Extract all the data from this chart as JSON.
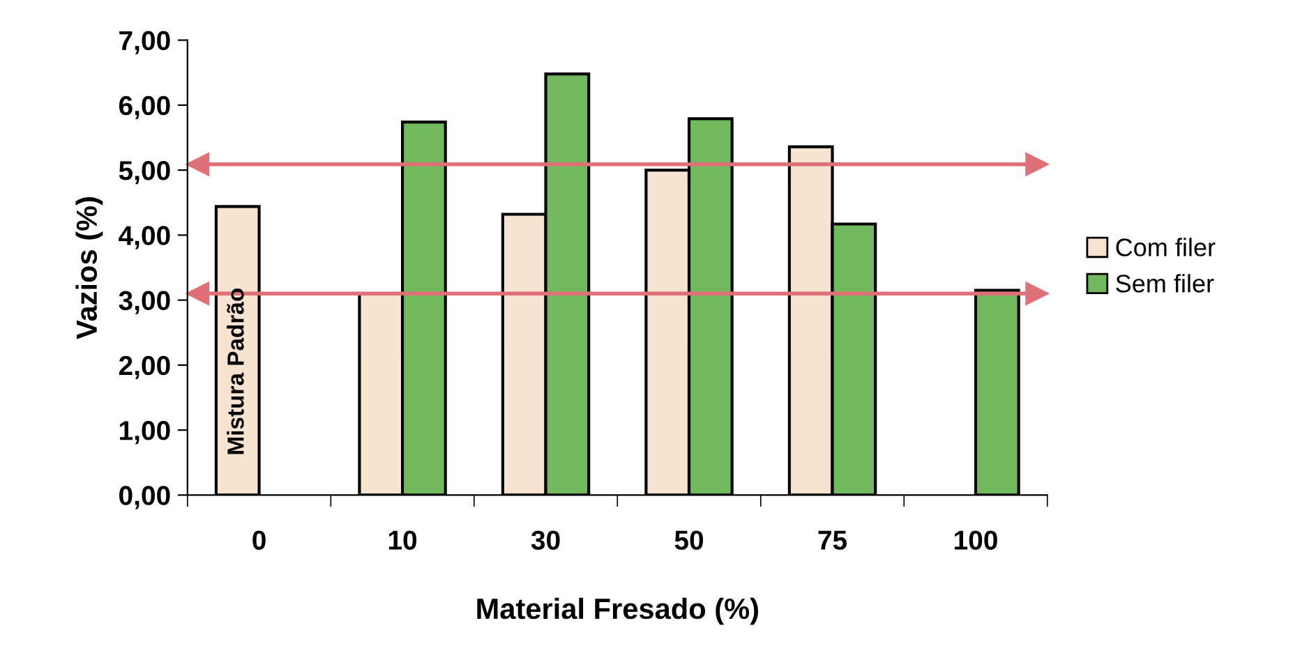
{
  "chart_data": {
    "type": "bar",
    "xlabel": "Material Fresado (%)",
    "ylabel": "Vazios (%)",
    "categories": [
      "0",
      "10",
      "30",
      "50",
      "75",
      "100"
    ],
    "series": [
      {
        "name": "Com filer",
        "color": "#f7e3cf",
        "values": [
          4.44,
          3.1,
          4.32,
          5.0,
          5.36,
          null
        ]
      },
      {
        "name": "Sem filer",
        "color": "#72b85e",
        "values": [
          null,
          5.74,
          6.48,
          5.79,
          4.17,
          3.15
        ]
      }
    ],
    "ylim": [
      0,
      7
    ],
    "yticks": [
      {
        "value": 0,
        "label": "0,00"
      },
      {
        "value": 1,
        "label": "1,00"
      },
      {
        "value": 2,
        "label": "2,00"
      },
      {
        "value": 3,
        "label": "3,00"
      },
      {
        "value": 4,
        "label": "4,00"
      },
      {
        "value": 5,
        "label": "5,00"
      },
      {
        "value": 6,
        "label": "6,00"
      },
      {
        "value": 7,
        "label": "7,00"
      }
    ],
    "ref_lines": [
      {
        "axis": "y",
        "value": 5.09,
        "color": "#e07078"
      },
      {
        "axis": "y",
        "value": 3.1,
        "color": "#e07078"
      }
    ],
    "annotations": [
      {
        "text": "Mistura Padrão",
        "x": "0",
        "y": 1.9
      }
    ],
    "legend": "right",
    "grid": false
  }
}
